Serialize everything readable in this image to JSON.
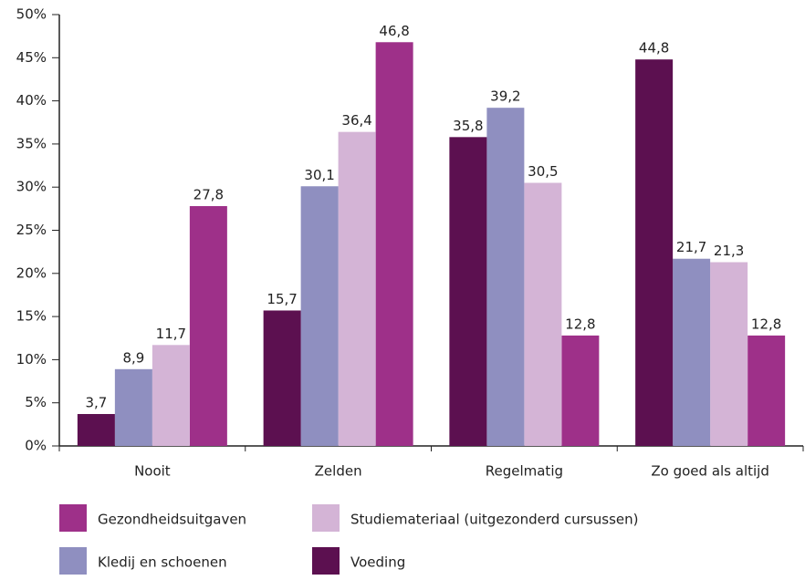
{
  "chart_data": {
    "type": "bar",
    "categories": [
      "Nooit",
      "Zelden",
      "Regelmatig",
      "Zo goed als altijd"
    ],
    "series": [
      {
        "name": "Gezondheidsuitgaven",
        "color": "#9e3089",
        "values": [
          27.8,
          46.8,
          12.8,
          12.8
        ],
        "value_labels": [
          "27,8",
          "46,8",
          "12,8",
          "12,8"
        ]
      },
      {
        "name": "Studiemateriaal (uitgezonderd cursussen)",
        "color": "#d4b4d6",
        "values": [
          11.7,
          36.4,
          30.5,
          21.3
        ],
        "value_labels": [
          "11,7",
          "36,4",
          "30,5",
          "21,3"
        ]
      },
      {
        "name": "Kledij en schoenen",
        "color": "#8f8fc0",
        "values": [
          8.9,
          30.1,
          39.2,
          21.7
        ],
        "value_labels": [
          "8,9",
          "30,1",
          "39,2",
          "21,7"
        ]
      },
      {
        "name": "Voeding",
        "color": "#5c1050",
        "values": [
          3.7,
          15.7,
          35.8,
          44.8
        ],
        "value_labels": [
          "3,7",
          "15,7",
          "35,8",
          "44,8"
        ]
      }
    ],
    "ylim": [
      0,
      50
    ],
    "yticks": [
      {
        "value": 0,
        "label": "0%"
      },
      {
        "value": 5,
        "label": "5%"
      },
      {
        "value": 10,
        "label": "10%"
      },
      {
        "value": 15,
        "label": "15%"
      },
      {
        "value": 20,
        "label": "20%"
      },
      {
        "value": 25,
        "label": "25%"
      },
      {
        "value": 30,
        "label": "30%"
      },
      {
        "value": 35,
        "label": "35%"
      },
      {
        "value": 40,
        "label": "40%"
      },
      {
        "value": 45,
        "label": "45%"
      },
      {
        "value": 50,
        "label": "50%"
      }
    ],
    "grid": false
  }
}
